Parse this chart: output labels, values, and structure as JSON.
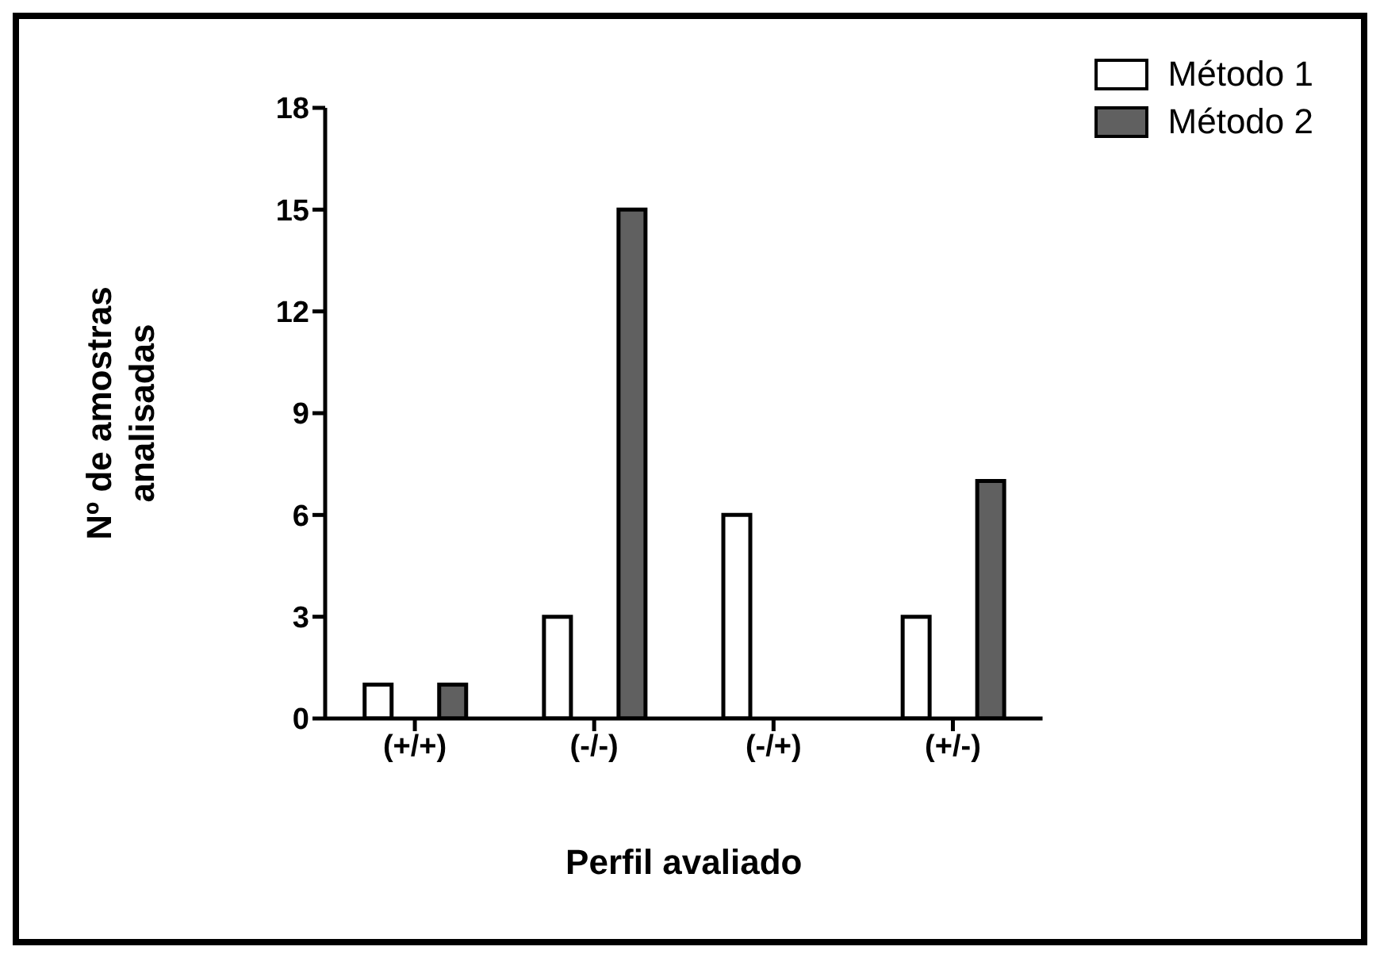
{
  "chart_data": {
    "type": "bar",
    "xlabel": "Perfil avaliado",
    "ylabel": "Nº de amostras analisadas",
    "categories": [
      "(+/+)",
      "(-/-)",
      "(-/+)",
      "(+/-)"
    ],
    "series": [
      {
        "name": "Método 1",
        "color": "#ffffff",
        "values": [
          1,
          3,
          6,
          3
        ]
      },
      {
        "name": "Método 2",
        "color": "#606060",
        "values": [
          1,
          15,
          0,
          7
        ]
      }
    ],
    "ylim": [
      0,
      18
    ],
    "yticks": [
      0,
      3,
      6,
      9,
      12,
      15,
      18
    ],
    "grid": false,
    "legend": "top right"
  }
}
